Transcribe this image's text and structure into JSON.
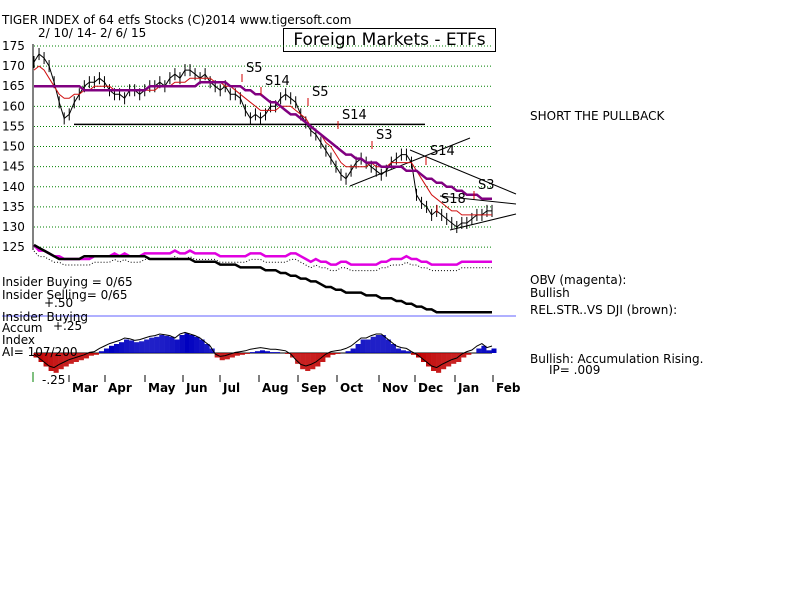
{
  "header": {
    "line1": "TIGER INDEX of  64 etfs Stocks  (C)2014  www.tigersoft.com",
    "line2": "2/ 10/ 14- 2/ 6/ 15",
    "title_box": "Foreign Markets - ETFs"
  },
  "colors": {
    "price": "#000000",
    "ma_short": "#d01010",
    "ma_long": "#800080",
    "obv": "#e000e0",
    "rel_strength": "#000000",
    "grid": "#008000",
    "accum_pos": "#0000c0",
    "accum_neg": "#c00000",
    "insider_line": "#6060ff"
  },
  "chart_data": {
    "type": "line",
    "price_panel": {
      "yticks": [
        "175",
        "170",
        "165",
        "160",
        "155",
        "150",
        "145",
        "140",
        "135",
        "130",
        "125"
      ],
      "ylim": [
        122,
        176
      ],
      "months": [
        "Mar",
        "Apr",
        "May",
        "Jun",
        "Jul",
        "Aug",
        "Sep",
        "Oct",
        "Nov",
        "Dec",
        "Jan",
        "Feb"
      ],
      "series": [
        {
          "values": [
            171,
            173,
            172,
            170,
            166,
            161,
            157,
            158,
            161,
            163,
            165,
            166,
            166,
            167,
            166,
            164,
            163,
            163,
            162,
            164,
            164,
            163,
            164,
            165,
            165,
            166,
            165,
            167,
            168,
            167,
            169,
            169,
            168,
            167,
            168,
            166,
            165,
            164,
            165,
            163,
            163,
            162,
            159,
            157,
            158,
            157,
            158,
            160,
            160,
            162,
            163,
            162,
            161,
            158,
            156,
            154,
            153,
            151,
            149,
            147,
            145,
            143,
            142,
            144,
            146,
            147,
            146,
            145,
            144,
            143,
            144,
            146,
            147,
            148,
            148,
            146,
            138,
            136,
            135,
            133,
            134,
            133,
            132,
            131,
            130,
            131,
            131,
            132,
            133,
            133,
            134,
            134
          ]
        },
        {
          "values": [
            169,
            170,
            169,
            167,
            165,
            163,
            162,
            162,
            163,
            163,
            164,
            164,
            165,
            165,
            165,
            165,
            164,
            164,
            164,
            164,
            164,
            164,
            164,
            164,
            164,
            165,
            165,
            165,
            166,
            166,
            166,
            167,
            167,
            167,
            167,
            167,
            166,
            166,
            165,
            165,
            164,
            163,
            162,
            161,
            160,
            159,
            159,
            159,
            159,
            160,
            160,
            160,
            159,
            158,
            157,
            155,
            154,
            153,
            151,
            150,
            148,
            146,
            145,
            145,
            145,
            145,
            145,
            146,
            145,
            145,
            145,
            146,
            146,
            146,
            146,
            146,
            144,
            142,
            140,
            138,
            137,
            136,
            135,
            134,
            134,
            133,
            133,
            133,
            133,
            133,
            133,
            133
          ]
        },
        {
          "values": [
            165,
            165,
            165,
            165,
            165,
            165,
            165,
            165,
            165,
            165,
            164,
            164,
            164,
            164,
            164,
            164,
            164,
            164,
            164,
            164,
            164,
            164,
            164,
            165,
            165,
            165,
            165,
            165,
            165,
            165,
            165,
            165,
            165,
            166,
            166,
            166,
            166,
            166,
            166,
            165,
            165,
            165,
            164,
            164,
            163,
            163,
            162,
            161,
            161,
            160,
            159,
            158,
            158,
            157,
            156,
            155,
            154,
            153,
            152,
            151,
            150,
            149,
            148,
            148,
            147,
            147,
            146,
            146,
            146,
            145,
            145,
            145,
            145,
            145,
            144,
            144,
            144,
            143,
            142,
            142,
            141,
            141,
            140,
            140,
            139,
            139,
            138,
            138,
            138,
            137,
            137,
            137
          ]
        }
      ],
      "signals": [
        "S5",
        "S14",
        "S5",
        "S14",
        "S3",
        "S14",
        "S18",
        "S3"
      ],
      "annotations": [
        "SHORT THE PULLBACK"
      ]
    },
    "obv_panel": {
      "obv": [
        125,
        123,
        123,
        122,
        121,
        121,
        120,
        120,
        120,
        120,
        120,
        120,
        121,
        121,
        121,
        121,
        122,
        121,
        122,
        121,
        121,
        121,
        122,
        122,
        122,
        122,
        122,
        122,
        123,
        122,
        122,
        123,
        122,
        122,
        122,
        122,
        122,
        121,
        121,
        121,
        121,
        121,
        121,
        122,
        122,
        122,
        121,
        121,
        121,
        121,
        121,
        122,
        122,
        121,
        120,
        119,
        120,
        119,
        119,
        118,
        118,
        119,
        119,
        118,
        118,
        118,
        118,
        118,
        118,
        119,
        119,
        120,
        120,
        120,
        121,
        120,
        120,
        119,
        119,
        118,
        118,
        118,
        118,
        118,
        118,
        119,
        119,
        119,
        119,
        119,
        119,
        119
      ],
      "rel_strength": [
        125,
        124,
        123,
        122,
        121,
        120,
        120,
        120,
        120,
        120,
        121,
        121,
        121,
        121,
        121,
        121,
        121,
        121,
        121,
        121,
        121,
        121,
        121,
        120,
        120,
        120,
        120,
        120,
        120,
        120,
        120,
        120,
        119,
        119,
        119,
        119,
        119,
        118,
        118,
        118,
        118,
        117,
        117,
        117,
        117,
        117,
        116,
        116,
        116,
        115,
        115,
        114,
        114,
        113,
        113,
        112,
        112,
        111,
        110,
        110,
        109,
        109,
        108,
        108,
        108,
        108,
        107,
        107,
        107,
        106,
        106,
        106,
        105,
        105,
        104,
        104,
        103,
        103,
        102,
        102,
        101,
        101,
        101,
        101,
        101,
        101,
        101,
        101,
        101,
        101,
        101,
        101
      ],
      "labels": [
        "Insider Buying = 0/65",
        "Insider Selling= 0/65",
        "+.50",
        "Insider Buying"
      ],
      "right_labels": [
        "OBV (magenta):",
        "Bullish",
        "REL.STR..VS DJI (brown):"
      ]
    },
    "accum_panel": {
      "ylabels": [
        "+.25",
        "-.25"
      ],
      "left_labels": [
        "Accum",
        "Index",
        "AI= 107/200"
      ],
      "values": [
        -0.05,
        -0.1,
        -0.15,
        -0.2,
        -0.22,
        -0.18,
        -0.15,
        -0.12,
        -0.1,
        -0.08,
        -0.06,
        -0.03,
        -0.02,
        0.02,
        0.05,
        0.08,
        0.1,
        0.12,
        0.15,
        0.14,
        0.12,
        0.13,
        0.15,
        0.17,
        0.18,
        0.2,
        0.19,
        0.18,
        0.15,
        0.2,
        0.22,
        0.2,
        0.18,
        0.15,
        0.1,
        0.05,
        -0.05,
        -0.08,
        -0.07,
        -0.05,
        -0.03,
        -0.02,
        -0.01,
        0.01,
        0.02,
        0.03,
        0.02,
        0.01,
        0.01,
        0.0,
        -0.01,
        -0.05,
        -0.12,
        -0.18,
        -0.2,
        -0.18,
        -0.15,
        -0.1,
        -0.05,
        -0.02,
        -0.01,
        0.0,
        0.02,
        0.05,
        0.1,
        0.15,
        0.15,
        0.18,
        0.2,
        0.2,
        0.15,
        0.1,
        0.05,
        0.03,
        0.02,
        -0.02,
        -0.05,
        -0.1,
        -0.15,
        -0.2,
        -0.22,
        -0.18,
        -0.15,
        -0.12,
        -0.1,
        -0.05,
        -0.02,
        0.0,
        0.05,
        0.08,
        0.03,
        0.05
      ],
      "right_labels": [
        "Bullish: Accumulation Rising.",
        "IP=  .009"
      ]
    }
  }
}
